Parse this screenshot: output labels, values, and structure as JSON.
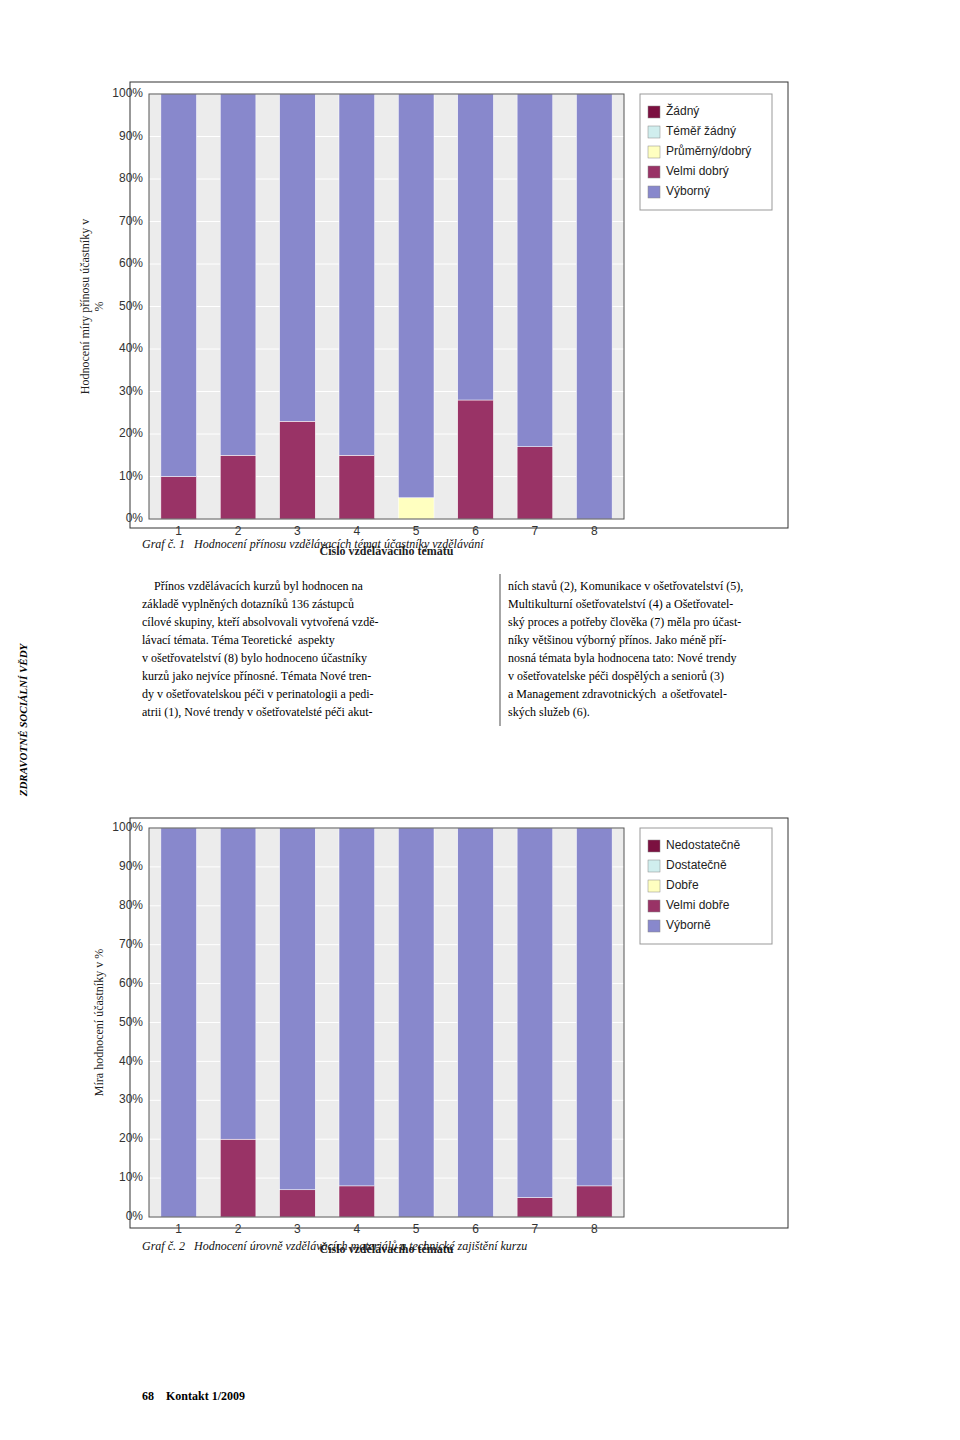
{
  "chart_data": [
    {
      "type": "bar",
      "stacked": true,
      "grid": true,
      "legend": "right",
      "title": "Graf č. 1   Hodnocení přínosu vzdělávacích témat účastníky vzdělávání",
      "xlabel": "Číslo vzdělávacího tématu",
      "ylabel": "Hodnocení míry přínosu účastníky v\n%",
      "categories": [
        1,
        2,
        3,
        4,
        5,
        6,
        7,
        8
      ],
      "series": [
        {
          "name": "Žádný",
          "color": "#7B1040",
          "values": [
            0,
            0,
            0,
            0,
            0,
            0,
            0,
            0
          ]
        },
        {
          "name": "Téměř žádný",
          "color": "#D0EEEE",
          "values": [
            0,
            0,
            0,
            0,
            0,
            0,
            0,
            0
          ]
        },
        {
          "name": "Průměrný/dobrý",
          "color": "#FFFFC0",
          "values": [
            0,
            0,
            0,
            0,
            5,
            0,
            0,
            0
          ]
        },
        {
          "name": "Velmi dobrý",
          "color": "#993366",
          "values": [
            10,
            15,
            23,
            15,
            0,
            28,
            17,
            0
          ]
        },
        {
          "name": "Výborný",
          "color": "#8888CC",
          "values": [
            90,
            85,
            77,
            85,
            95,
            72,
            83,
            100
          ]
        }
      ],
      "ylim": [
        0,
        100
      ],
      "yticks": [
        {
          "value": 0,
          "label": "0%"
        },
        {
          "value": 10,
          "label": "10%"
        },
        {
          "value": 20,
          "label": "20%"
        },
        {
          "value": 30,
          "label": "30%"
        },
        {
          "value": 40,
          "label": "40%"
        },
        {
          "value": 50,
          "label": "50%"
        },
        {
          "value": 60,
          "label": "60%"
        },
        {
          "value": 70,
          "label": "70%"
        },
        {
          "value": 80,
          "label": "80%"
        },
        {
          "value": 90,
          "label": "90%"
        },
        {
          "value": 100,
          "label": "100%"
        }
      ]
    },
    {
      "type": "bar",
      "stacked": true,
      "grid": true,
      "legend": "right",
      "title": "Graf č. 2   Hodnocení úrovně vzdělávacích materiálů a technické zajištění kurzu",
      "xlabel": "Číslo vzdělávacího tématu",
      "ylabel": "Míra hodnocení účastníky v %",
      "categories": [
        1,
        2,
        3,
        4,
        5,
        6,
        7,
        8
      ],
      "series": [
        {
          "name": "Nedostatečně",
          "color": "#7B1040",
          "values": [
            0,
            0,
            0,
            0,
            0,
            0,
            0,
            0
          ]
        },
        {
          "name": "Dostatečně",
          "color": "#D0EEEE",
          "values": [
            0,
            0,
            0,
            0,
            0,
            0,
            0,
            0
          ]
        },
        {
          "name": "Dobře",
          "color": "#FFFFC0",
          "values": [
            0,
            0,
            0,
            0,
            0,
            0,
            0,
            0
          ]
        },
        {
          "name": "Velmi dobře",
          "color": "#993366",
          "values": [
            0,
            20,
            7,
            8,
            0,
            0,
            5,
            8
          ]
        },
        {
          "name": "Výborně",
          "color": "#8888CC",
          "values": [
            100,
            80,
            93,
            92,
            100,
            100,
            95,
            92
          ]
        }
      ],
      "ylim": [
        0,
        100
      ],
      "yticks": [
        {
          "value": 0,
          "label": "0%"
        },
        {
          "value": 10,
          "label": "10%"
        },
        {
          "value": 20,
          "label": "20%"
        },
        {
          "value": 30,
          "label": "30%"
        },
        {
          "value": 40,
          "label": "40%"
        },
        {
          "value": 50,
          "label": "50%"
        },
        {
          "value": 60,
          "label": "60%"
        },
        {
          "value": 70,
          "label": "70%"
        },
        {
          "value": 80,
          "label": "80%"
        },
        {
          "value": 90,
          "label": "90%"
        },
        {
          "value": 100,
          "label": "100%"
        }
      ]
    }
  ],
  "annotations": [
    "ZDRAVOTNÉ SOCIÁLNÍ VĚDY",
    "    Přínos vzdělávacích kurzů byl hodnocen na\nzákladě vyplněných dotazníků 136 zástupců\ncílové skupiny, kteří absolvovali vytvořená vzdě-\nlávací témata. Téma Teoretické  aspekty\nv ošetřovatelství (8) bylo hodnoceno účastníky\nkurzů jako nejvíce přínosné. Témata Nové tren-\ndy v ošetřovatelskou péči v perinatologii a pedi-\natrii (1), Nové trendy v ošetřovatelsté péči akut-",
    "ních stavů (2), Komunikace v ošetřovatelství (5),\nMultikulturní ošetřovatelství (4) a Ošetřovatel-\nský proces a potřeby člověka (7) měla pro účast-\nníky většinou výborný přínos. Jako méně pří-\nnosná témata byla hodnocena tato: Nové trendy\nv ošetřovatelske péči dospělých a seniorů (3)\na Management zdravotnických  a ošetřovatel-\nských služeb (6).",
    "68    Kontakt 1/2009"
  ]
}
